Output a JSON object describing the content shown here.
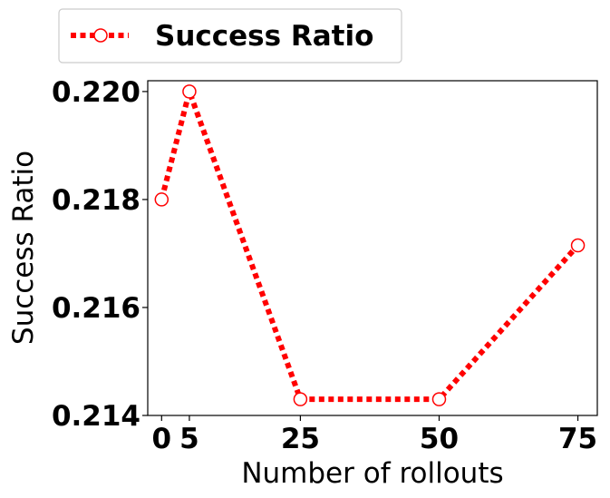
{
  "chart_data": {
    "type": "line",
    "xlabel": "Number of rollouts",
    "ylabel": "Success Ratio",
    "x": [
      0,
      5,
      25,
      50,
      75
    ],
    "xticks": [
      "0",
      "5",
      "25",
      "50",
      "75"
    ],
    "yticks": [
      "0.214",
      "0.216",
      "0.218",
      "0.220"
    ],
    "ylim": [
      0.214,
      0.2202
    ],
    "xlim": [
      -2.5,
      78.5
    ],
    "grid": false,
    "legend_position": "top-left, above plot",
    "series": [
      {
        "name": "Success Ratio",
        "values": [
          0.218,
          0.22,
          0.2143,
          0.2143,
          0.21715
        ],
        "color": "#ff0000",
        "line_style": "dotted",
        "marker": "open-circle"
      }
    ]
  }
}
